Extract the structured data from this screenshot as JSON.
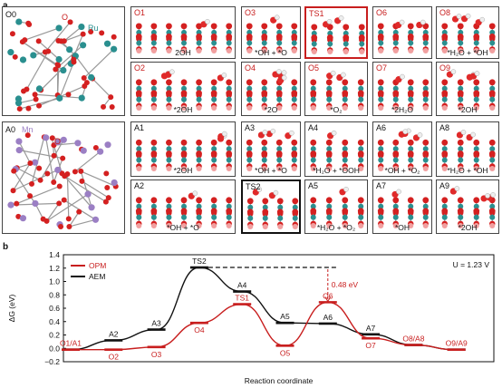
{
  "panel_a": "a",
  "panel_b": "b",
  "opm_overview": {
    "label": "O0",
    "element": "Ru",
    "atom": "O",
    "element_color": "#2a8f8f"
  },
  "aem_overview": {
    "label": "A0",
    "element": "Mn",
    "atom": "O",
    "element_color": "#9b7fc4"
  },
  "opm_row1": [
    {
      "label": "O1",
      "caption": "2OH",
      "style": "normal"
    },
    {
      "label": "O3",
      "caption": "*OH + *O",
      "style": "normal"
    },
    {
      "label": "TS1",
      "caption": "",
      "style": "red"
    },
    {
      "label": "O6",
      "caption": "",
      "style": "normal"
    },
    {
      "label": "O8",
      "caption": "*H₂O + *OH",
      "style": "normal"
    }
  ],
  "opm_row2": [
    {
      "label": "O2",
      "caption": "*2OH",
      "style": "normal"
    },
    {
      "label": "O4",
      "caption": "*2O",
      "style": "normal"
    },
    {
      "label": "O5",
      "caption": "*O₂",
      "style": "normal"
    },
    {
      "label": "O7",
      "caption": "*2H₂O",
      "style": "normal"
    },
    {
      "label": "O9",
      "caption": "*2OH",
      "style": "normal"
    }
  ],
  "aem_row1": [
    {
      "label": "A1",
      "caption": "*2OH",
      "style": "normal"
    },
    {
      "label": "A3",
      "caption": "*OH + *O",
      "style": "normal"
    },
    {
      "label": "A4",
      "caption": "*H₂O + *OOH",
      "style": "normal"
    },
    {
      "label": "A6",
      "caption": "*OH + *O₂",
      "style": "normal"
    },
    {
      "label": "A8",
      "caption": "*H₂O + *OH",
      "style": "normal"
    }
  ],
  "aem_row2": [
    {
      "label": "A2",
      "caption": "*OH + *O",
      "style": "normal"
    },
    {
      "label": "TS2",
      "caption": "",
      "style": "black"
    },
    {
      "label": "A5",
      "caption": "*H₂O + *O₂",
      "style": "normal"
    },
    {
      "label": "A7",
      "caption": "*OH",
      "style": "normal"
    },
    {
      "label": "A9",
      "caption": "*2OH",
      "style": "normal"
    }
  ],
  "chart_data": {
    "type": "line",
    "xlabel": "Reaction coordinate",
    "ylabel": "ΔG (eV)",
    "ylim": [
      -0.2,
      1.4
    ],
    "yticks": [
      "−0.2",
      "0.0",
      "0.2",
      "0.4",
      "0.6",
      "0.8",
      "1.0",
      "1.2",
      "1.4"
    ],
    "potential": "U = 1.23 V",
    "legend_placement": "top-left",
    "barrier_annotation": "0.48 eV",
    "series": [
      {
        "name": "OPM",
        "color": "#c81e1e",
        "points": [
          {
            "label": "O1/A1",
            "x": 0,
            "y": -0.02
          },
          {
            "label": "O2",
            "x": 1,
            "y": -0.02
          },
          {
            "label": "O3",
            "x": 2,
            "y": 0.02
          },
          {
            "label": "O4",
            "x": 3,
            "y": 0.38
          },
          {
            "label": "TS1",
            "x": 4,
            "y": 0.66
          },
          {
            "label": "O5",
            "x": 5,
            "y": 0.04
          },
          {
            "label": "O6",
            "x": 6,
            "y": 0.69
          },
          {
            "label": "O7",
            "x": 7,
            "y": 0.15
          },
          {
            "label": "O8/A8",
            "x": 8,
            "y": 0.05
          },
          {
            "label": "O9/A9",
            "x": 9,
            "y": -0.02
          }
        ]
      },
      {
        "name": "AEM",
        "color": "#111111",
        "points": [
          {
            "label": "A1",
            "x": 0,
            "y": -0.02
          },
          {
            "label": "A2",
            "x": 1,
            "y": 0.12
          },
          {
            "label": "A3",
            "x": 2,
            "y": 0.28
          },
          {
            "label": "TS2",
            "x": 3,
            "y": 1.21
          },
          {
            "label": "A4",
            "x": 4,
            "y": 0.85
          },
          {
            "label": "A5",
            "x": 5,
            "y": 0.38
          },
          {
            "label": "A6",
            "x": 6,
            "y": 0.37
          },
          {
            "label": "A7",
            "x": 7,
            "y": 0.21
          },
          {
            "label": "A8",
            "x": 8,
            "y": 0.05
          },
          {
            "label": "A9",
            "x": 9,
            "y": -0.02
          }
        ]
      }
    ]
  }
}
